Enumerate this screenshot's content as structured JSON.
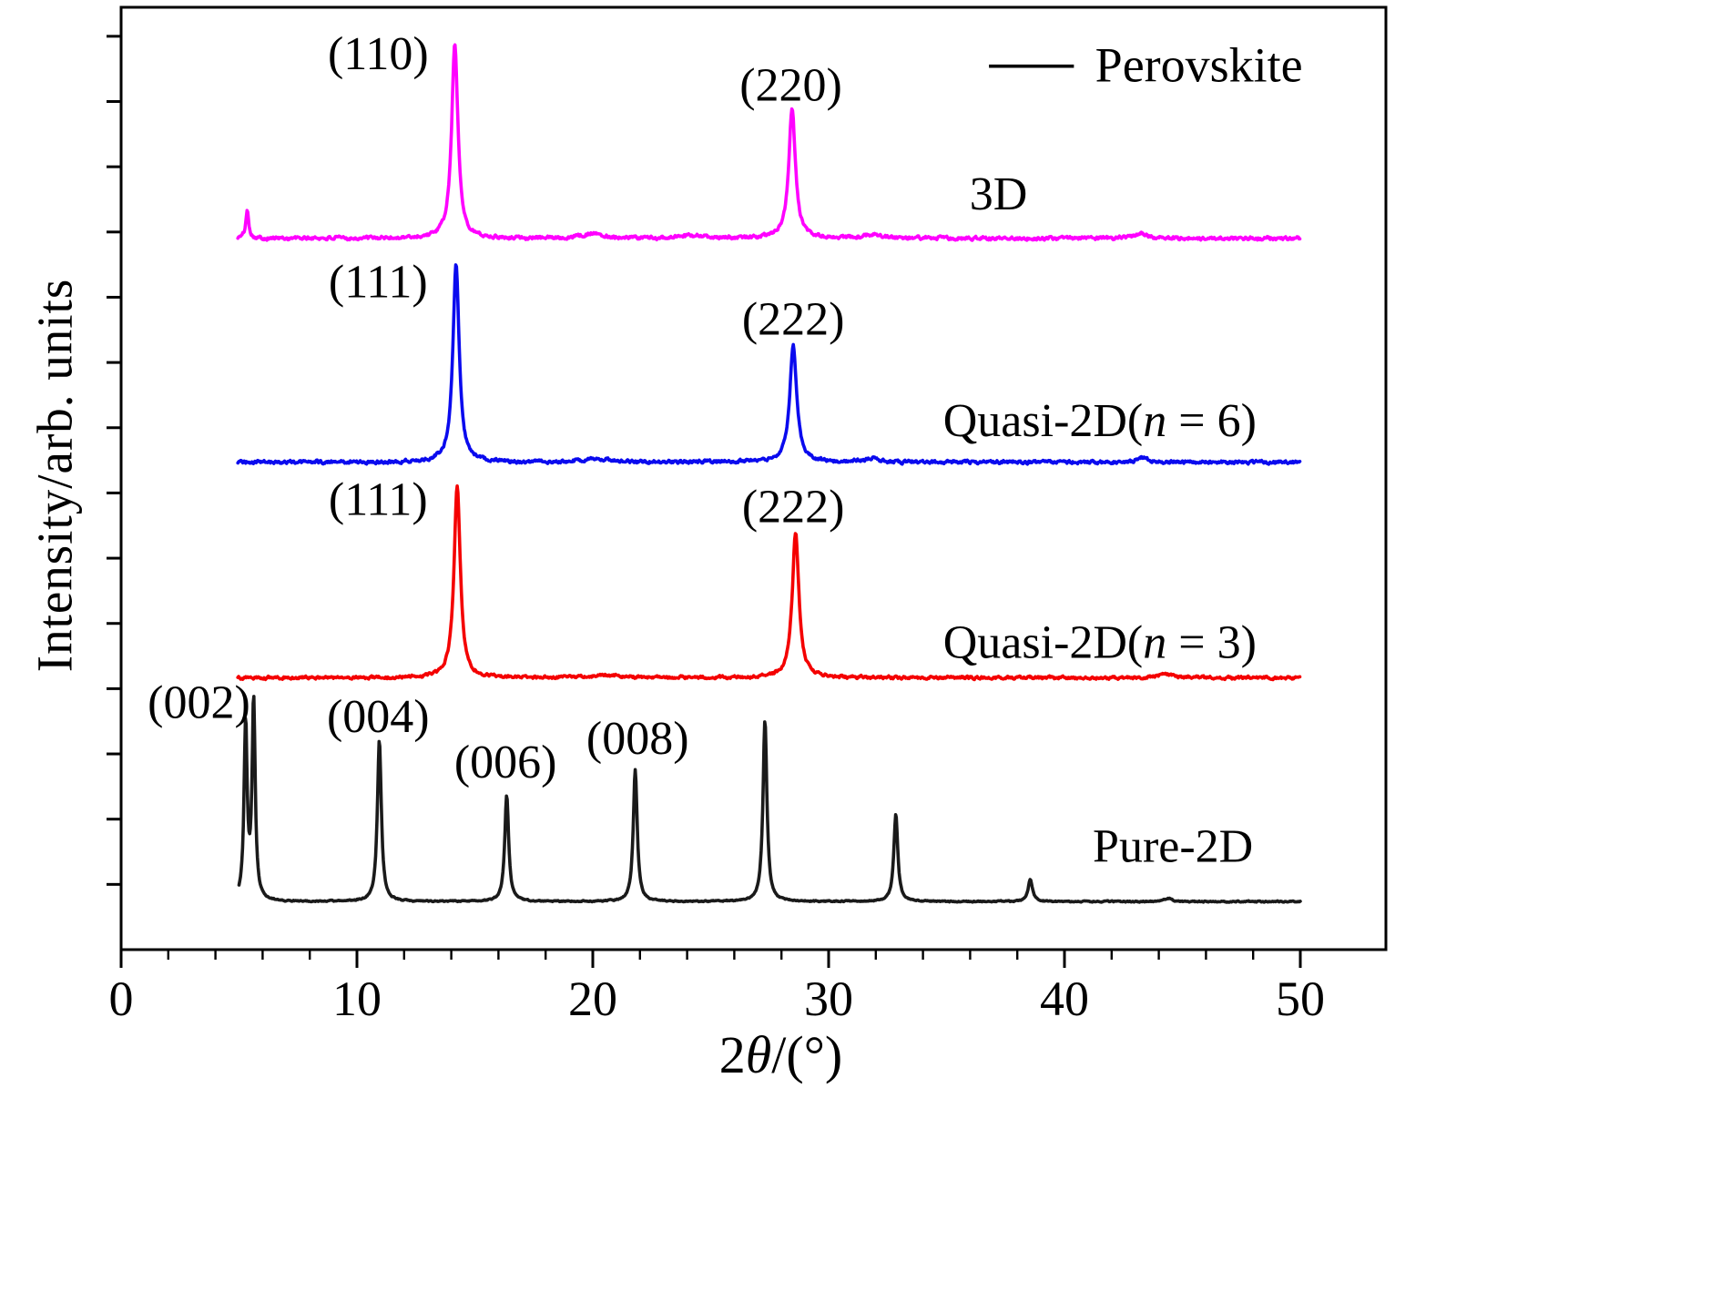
{
  "chart_data": {
    "type": "line",
    "title": "",
    "xlabel": "2θ/(°)",
    "ylabel": "Intensity/arb. units",
    "xlim": [
      0,
      50
    ],
    "ylim": [
      0,
      10.4
    ],
    "x_data_end": 50,
    "x_ticks": [
      0,
      10,
      20,
      30,
      40,
      50
    ],
    "x_minor_tick_step": 2,
    "y_tick_step": 0.72,
    "grid": false,
    "legend": {
      "label": "Perovskite",
      "color": "#000000",
      "line_x1": 36.8,
      "line_x2": 40.4,
      "text_x": 41.3,
      "y": 9.75
    },
    "series": [
      {
        "name": "3D",
        "color": "#ff00ff",
        "baseline": 7.85,
        "noise": 0.034,
        "x_start": 4.95,
        "peaks": [
          {
            "x": 5.35,
            "h": 0.3,
            "w": 0.08
          },
          {
            "x": 14.15,
            "h": 2.15,
            "w": 0.16,
            "hkl": "(110)"
          },
          {
            "x": 20.0,
            "h": 0.05,
            "w": 0.6
          },
          {
            "x": 24.3,
            "h": 0.03,
            "w": 0.5
          },
          {
            "x": 28.45,
            "h": 1.42,
            "w": 0.17,
            "hkl": "(220)"
          },
          {
            "x": 31.9,
            "h": 0.05,
            "w": 0.35
          },
          {
            "x": 43.2,
            "h": 0.06,
            "w": 0.3
          }
        ]
      },
      {
        "name": "Quasi-2D(n = 6)",
        "color": "#0a0aee",
        "baseline": 5.38,
        "noise": 0.032,
        "x_start": 4.95,
        "peaks": [
          {
            "x": 14.2,
            "h": 2.18,
            "w": 0.16,
            "hkl": "(111)"
          },
          {
            "x": 20.2,
            "h": 0.04,
            "w": 0.7
          },
          {
            "x": 28.5,
            "h": 1.28,
            "w": 0.18,
            "hkl": "(222)"
          },
          {
            "x": 31.9,
            "h": 0.04,
            "w": 0.35
          },
          {
            "x": 43.3,
            "h": 0.05,
            "w": 0.3
          }
        ]
      },
      {
        "name": "Quasi-2D(n = 3)",
        "color": "#f40000",
        "baseline": 3.0,
        "noise": 0.028,
        "x_start": 4.95,
        "peaks": [
          {
            "x": 14.25,
            "h": 2.12,
            "w": 0.16,
            "hkl": "(111)"
          },
          {
            "x": 20.5,
            "h": 0.03,
            "w": 0.7
          },
          {
            "x": 28.6,
            "h": 1.6,
            "w": 0.17,
            "hkl": "(222)"
          },
          {
            "x": 44.3,
            "h": 0.04,
            "w": 0.35
          }
        ]
      },
      {
        "name": "Pure-2D",
        "color": "#1a1a1a",
        "baseline": 0.53,
        "noise": 0.012,
        "x_start": 5.0,
        "peaks": [
          {
            "x": 5.28,
            "h": 1.95,
            "w": 0.08,
            "hkl": "(002)"
          },
          {
            "x": 5.62,
            "h": 2.2,
            "w": 0.08
          },
          {
            "x": 10.95,
            "h": 1.78,
            "w": 0.1,
            "hkl": "(004)"
          },
          {
            "x": 16.35,
            "h": 1.18,
            "w": 0.1,
            "hkl": "(006)"
          },
          {
            "x": 21.8,
            "h": 1.45,
            "w": 0.1,
            "hkl": "(008)"
          },
          {
            "x": 27.3,
            "h": 2.0,
            "w": 0.1
          },
          {
            "x": 32.85,
            "h": 0.97,
            "w": 0.1
          },
          {
            "x": 38.55,
            "h": 0.24,
            "w": 0.11
          },
          {
            "x": 44.4,
            "h": 0.04,
            "w": 0.15
          }
        ]
      }
    ],
    "annotations": [
      {
        "text": "(110)",
        "x": 10.9,
        "y": 9.9
      },
      {
        "text": "(220)",
        "x": 28.4,
        "y": 9.55
      },
      {
        "text": "(111)",
        "x": 10.9,
        "y": 7.38
      },
      {
        "text": "(222)",
        "x": 28.5,
        "y": 6.97
      },
      {
        "text": "(111)",
        "x": 10.9,
        "y": 4.98
      },
      {
        "text": "(222)",
        "x": 28.5,
        "y": 4.9
      },
      {
        "text": "(002)",
        "x": 3.3,
        "y": 2.74
      },
      {
        "text": "(004)",
        "x": 10.9,
        "y": 2.58
      },
      {
        "text": "(006)",
        "x": 16.3,
        "y": 2.08
      },
      {
        "text": "(008)",
        "x": 21.9,
        "y": 2.34
      }
    ],
    "trace_labels": [
      {
        "text": "3D",
        "x": 37.2,
        "y": 8.35
      },
      {
        "text": "Quasi-2D(n = 6)",
        "x": 41.5,
        "y": 5.85
      },
      {
        "text": "Quasi-2D(n = 3)",
        "x": 41.5,
        "y": 3.4
      },
      {
        "text": "Pure-2D",
        "x": 44.6,
        "y": 1.15
      }
    ]
  }
}
